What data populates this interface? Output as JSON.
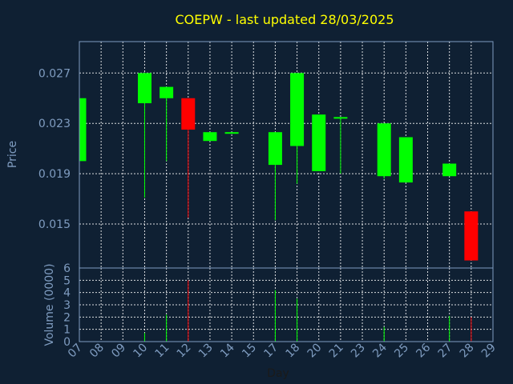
{
  "chart_data": {
    "type": "candlestick",
    "title": "COEPW - last updated 28/03/2025",
    "ylabel_price": "Price",
    "ylabel_volume": "Volume (0000)",
    "xlabel": "Day",
    "price_ylim": [
      0.0115,
      0.0295
    ],
    "price_ticks": [
      "0.027",
      "0.023",
      "0.019",
      "0.015"
    ],
    "volume_ylim": [
      0,
      6
    ],
    "volume_ticks": [
      "0",
      "1",
      "2",
      "3",
      "4",
      "5",
      "6"
    ],
    "days": [
      "07",
      "08",
      "09",
      "10",
      "11",
      "12",
      "13",
      "14",
      "15",
      "17",
      "18",
      "20",
      "21",
      "23",
      "24",
      "25",
      "26",
      "27",
      "28",
      "29"
    ],
    "grid": true,
    "up_color": "#00ff00",
    "down_color": "#ff0000",
    "background": "#0f2033",
    "candles": [
      {
        "day": "07",
        "open": 0.02,
        "high": 0.025,
        "low": 0.02,
        "close": 0.025,
        "volume": 0.0
      },
      {
        "day": "10",
        "open": 0.0246,
        "high": 0.027,
        "low": 0.0171,
        "close": 0.027,
        "volume": 0.7
      },
      {
        "day": "11",
        "open": 0.025,
        "high": 0.0259,
        "low": 0.02,
        "close": 0.0259,
        "volume": 2.2
      },
      {
        "day": "12",
        "open": 0.025,
        "high": 0.025,
        "low": 0.0155,
        "close": 0.0225,
        "volume": 5.0
      },
      {
        "day": "13",
        "open": 0.0216,
        "high": 0.0223,
        "low": 0.0216,
        "close": 0.0223,
        "volume": 0.0
      },
      {
        "day": "14",
        "open": 0.0222,
        "high": 0.0223,
        "low": 0.0222,
        "close": 0.0223,
        "volume": 0.0
      },
      {
        "day": "17",
        "open": 0.0197,
        "high": 0.0223,
        "low": 0.0153,
        "close": 0.0223,
        "volume": 4.2
      },
      {
        "day": "18",
        "open": 0.0212,
        "high": 0.027,
        "low": 0.0182,
        "close": 0.027,
        "volume": 3.5
      },
      {
        "day": "20",
        "open": 0.0192,
        "high": 0.0237,
        "low": 0.0192,
        "close": 0.0237,
        "volume": 0.0
      },
      {
        "day": "21",
        "open": 0.0234,
        "high": 0.0235,
        "low": 0.019,
        "close": 0.0235,
        "volume": 0.0
      },
      {
        "day": "24",
        "open": 0.0188,
        "high": 0.023,
        "low": 0.0186,
        "close": 0.023,
        "volume": 1.2
      },
      {
        "day": "25",
        "open": 0.0183,
        "high": 0.0219,
        "low": 0.0183,
        "close": 0.0219,
        "volume": 0.0
      },
      {
        "day": "27",
        "open": 0.0188,
        "high": 0.0198,
        "low": 0.0188,
        "close": 0.0198,
        "volume": 2.1
      },
      {
        "day": "28",
        "open": 0.016,
        "high": 0.016,
        "low": 0.0121,
        "close": 0.0121,
        "volume": 2.0
      }
    ]
  }
}
